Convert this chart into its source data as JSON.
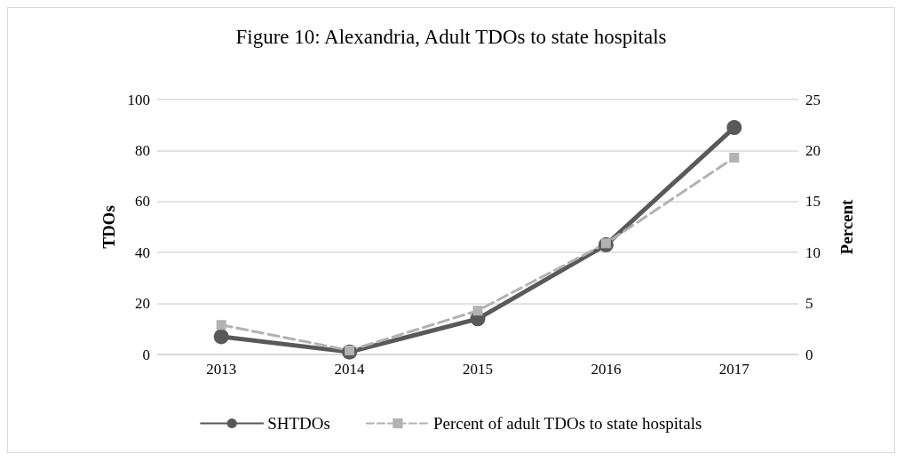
{
  "chart_data": {
    "type": "line",
    "title": "Figure 10: Alexandria, Adult TDOs to state hospitals",
    "ylabel": "TDOs",
    "y2label": "Percent",
    "categories": [
      "2013",
      "2014",
      "2015",
      "2016",
      "2017"
    ],
    "series": [
      {
        "name": "SHTDOs",
        "color": "#595959",
        "values": [
          7,
          1,
          14,
          43,
          89
        ],
        "marker": "circle",
        "line_style": "solid"
      },
      {
        "name": "Percent of adult TDOs to state hospitals",
        "color": "#b2b2b2",
        "values": [
          2.9,
          0.4,
          4.3,
          10.9,
          19.3
        ],
        "axis": "y2",
        "marker": "square",
        "line_style": "dashed"
      }
    ],
    "ylim": [
      0,
      100
    ],
    "yticks": [
      0,
      20,
      40,
      60,
      80,
      100
    ],
    "y2lim": [
      0,
      25
    ],
    "y2ticks": [
      0,
      5,
      10,
      15,
      20,
      25
    ],
    "grid": "y",
    "legend": "bottom"
  }
}
